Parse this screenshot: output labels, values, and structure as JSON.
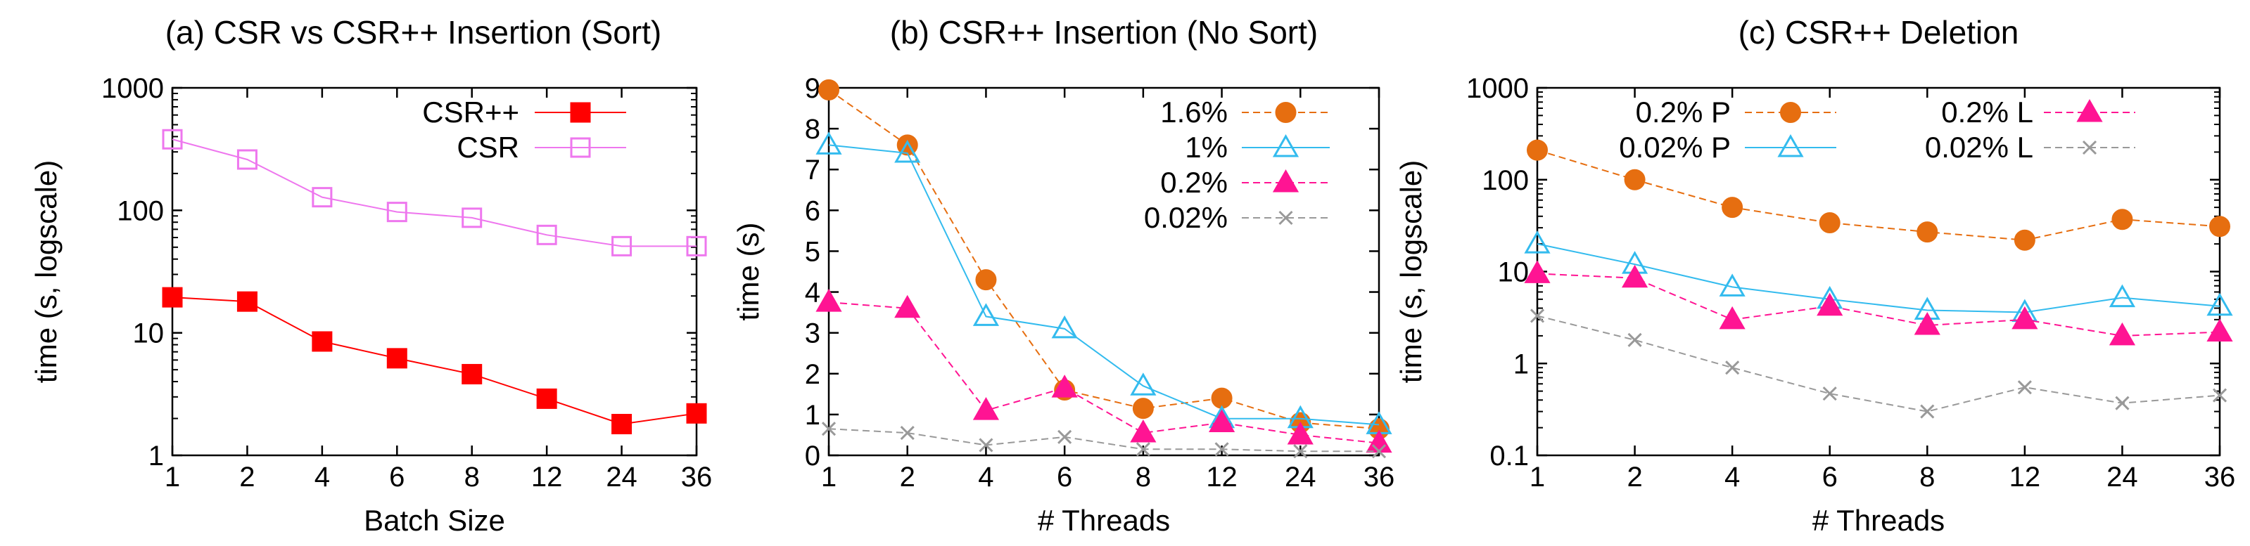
{
  "chart_data": [
    {
      "type": "line",
      "title": "(a) CSR vs CSR++ Insertion (Sort)",
      "xlabel": "Batch Size",
      "ylabel": "time (s, logscale)",
      "yscale": "log",
      "ylim": [
        1,
        1000
      ],
      "yticks": [
        1,
        10,
        100,
        1000
      ],
      "categories": [
        "1",
        "2",
        "4",
        "6",
        "8",
        "12",
        "24",
        "36"
      ],
      "legend_position": "top-right",
      "grid": false,
      "series": [
        {
          "name": "CSR++",
          "color": "#ff0000",
          "marker": "filled-square",
          "line": "solid",
          "values": [
            19.5,
            18.0,
            8.5,
            6.2,
            4.6,
            2.9,
            1.8,
            2.2
          ]
        },
        {
          "name": "CSR",
          "color": "#ee77ee",
          "marker": "open-square",
          "line": "solid",
          "values": [
            380,
            260,
            128,
            97,
            87,
            63,
            51,
            51
          ]
        }
      ]
    },
    {
      "type": "line",
      "title": "(b) CSR++ Insertion (No Sort)",
      "xlabel": "# Threads",
      "ylabel": "time (s)",
      "yscale": "linear",
      "ylim": [
        0,
        9
      ],
      "yticks": [
        0,
        1,
        2,
        3,
        4,
        5,
        6,
        7,
        8,
        9
      ],
      "categories": [
        "1",
        "2",
        "4",
        "6",
        "8",
        "12",
        "24",
        "36"
      ],
      "legend_position": "top-right",
      "grid": false,
      "series": [
        {
          "name": "1.6%",
          "color": "#e66e10",
          "marker": "filled-circle",
          "line": "dashed",
          "values": [
            8.95,
            7.6,
            4.3,
            1.6,
            1.15,
            1.4,
            0.8,
            0.65
          ]
        },
        {
          "name": "1%",
          "color": "#33bbee",
          "marker": "open-triangle",
          "line": "solid",
          "values": [
            7.6,
            7.4,
            3.4,
            3.1,
            1.7,
            0.9,
            0.9,
            0.75
          ]
        },
        {
          "name": "0.2%",
          "color": "#ff1493",
          "marker": "filled-triangle",
          "line": "dashed",
          "values": [
            3.75,
            3.6,
            1.1,
            1.65,
            0.55,
            0.8,
            0.5,
            0.3
          ]
        },
        {
          "name": "0.02%",
          "color": "#999999",
          "marker": "x",
          "line": "dashed",
          "values": [
            0.65,
            0.55,
            0.25,
            0.45,
            0.15,
            0.15,
            0.1,
            0.1
          ]
        }
      ]
    },
    {
      "type": "line",
      "title": "(c) CSR++ Deletion",
      "xlabel": "# Threads",
      "ylabel": "time (s, logscale)",
      "yscale": "log",
      "ylim": [
        0.1,
        1000
      ],
      "yticks": [
        0.1,
        1,
        10,
        100,
        1000
      ],
      "categories": [
        "1",
        "2",
        "4",
        "6",
        "8",
        "12",
        "24",
        "36"
      ],
      "legend_position": "top",
      "grid": false,
      "series": [
        {
          "name": "0.2% P",
          "color": "#e66e10",
          "marker": "filled-circle",
          "line": "dashed",
          "values": [
            210,
            100,
            50,
            34,
            27,
            22,
            37,
            31
          ]
        },
        {
          "name": "0.02% P",
          "color": "#33bbee",
          "marker": "open-triangle",
          "line": "solid",
          "values": [
            20,
            12,
            6.8,
            5.0,
            3.8,
            3.6,
            5.2,
            4.2
          ]
        },
        {
          "name": "0.2% L",
          "color": "#ff1493",
          "marker": "filled-triangle",
          "line": "dashed",
          "values": [
            9.5,
            8.5,
            3.0,
            4.2,
            2.6,
            3.0,
            2.0,
            2.2
          ]
        },
        {
          "name": "0.02% L",
          "color": "#999999",
          "marker": "x",
          "line": "dashed",
          "values": [
            3.3,
            1.8,
            0.9,
            0.47,
            0.3,
            0.55,
            0.37,
            0.45
          ]
        }
      ]
    }
  ]
}
